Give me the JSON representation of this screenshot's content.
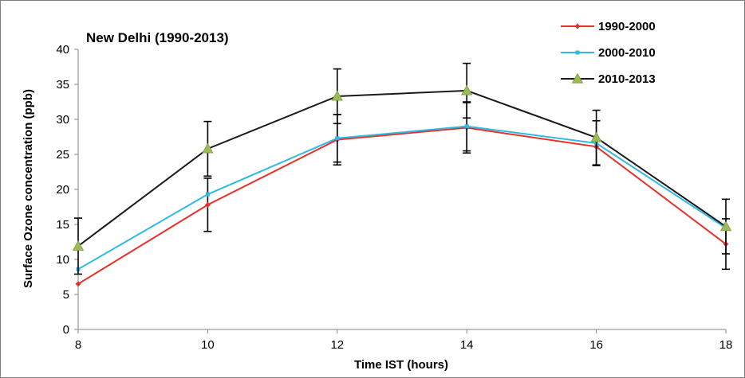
{
  "chart_data": {
    "type": "line",
    "title": "New Delhi (1990-2013)",
    "xlabel": "Time IST (hours)",
    "ylabel": "Surface Ozone concentration (ppb)",
    "x": [
      8,
      10,
      12,
      14,
      16,
      18
    ],
    "x_ticks": [
      "8",
      "10",
      "12",
      "14",
      "16",
      "18"
    ],
    "xlim": [
      8,
      18
    ],
    "ylim": [
      0,
      40
    ],
    "y_ticks": [
      "0",
      "5",
      "10",
      "15",
      "20",
      "25",
      "30",
      "35",
      "40"
    ],
    "grid": false,
    "legend_position": "top-right",
    "series": [
      {
        "name": "1990-2000",
        "color": "#e8302a",
        "marker": "diamond",
        "values": [
          6.5,
          17.8,
          27.1,
          28.8,
          26.1,
          12.2
        ],
        "error": [
          null,
          3.8,
          3.6,
          3.6,
          null,
          3.6
        ]
      },
      {
        "name": "2000-2010",
        "color": "#2eb8e6",
        "marker": "square",
        "values": [
          8.6,
          19.3,
          27.3,
          29.0,
          26.6,
          14.5
        ],
        "error": [
          null,
          null,
          3.4,
          3.5,
          3.2,
          null
        ]
      },
      {
        "name": "2010-2013",
        "color": "#1a1a1a",
        "marker": "triangle",
        "values": [
          11.9,
          25.8,
          33.3,
          34.1,
          27.4,
          14.7
        ],
        "error": [
          4.0,
          3.9,
          3.9,
          3.9,
          3.9,
          3.9
        ]
      }
    ]
  }
}
